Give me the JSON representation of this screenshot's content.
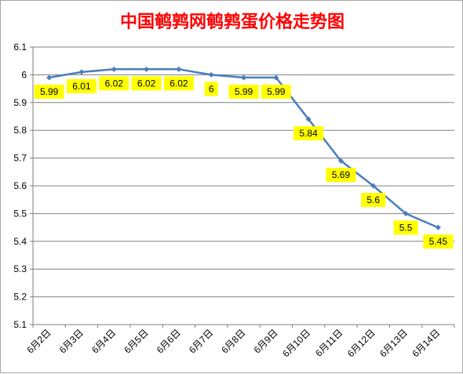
{
  "chart_data": {
    "type": "line",
    "title": "中国鹌鹑网鹌鹑蛋价格走势图",
    "categories": [
      "6月2日",
      "6月3日",
      "6月4日",
      "6月5日",
      "6月6日",
      "6月7日",
      "6月8日",
      "6月9日",
      "6月10日",
      "6月11日",
      "6月12日",
      "6月13日",
      "6月14日"
    ],
    "series": [
      {
        "values": [
          5.99,
          6.01,
          6.02,
          6.02,
          6.02,
          6,
          5.99,
          5.99,
          5.84,
          5.69,
          5.6,
          5.5,
          5.45
        ],
        "data_labels": [
          "5.99",
          "6.01",
          "6.02",
          "6.02",
          "6.02",
          "6",
          "5.99",
          "5.99",
          "5.84",
          "5.69",
          "5.6",
          "5.5",
          "5.45"
        ]
      }
    ],
    "y_ticks": [
      "5.1",
      "5.2",
      "5.3",
      "5.4",
      "5.5",
      "5.6",
      "5.7",
      "5.8",
      "5.9",
      "6",
      "6.1"
    ],
    "ylim": [
      5.1,
      6.1
    ],
    "grid": true,
    "legend": "none",
    "colors": {
      "title": "#ff0000",
      "line": "#4a7ebb",
      "label_background": "#ffff00",
      "gridline": "#808080",
      "axis": "#808080"
    }
  }
}
